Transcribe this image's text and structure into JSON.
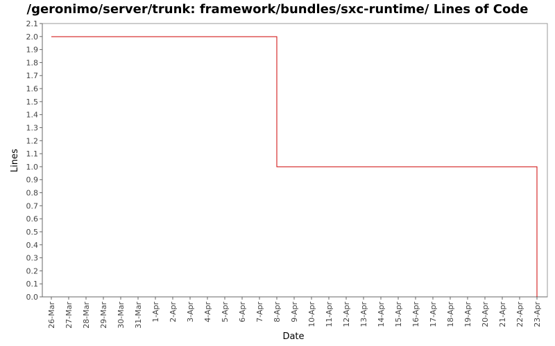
{
  "chart_data": {
    "type": "line",
    "title": "/geronimo/server/trunk: framework/bundles/sxc-runtime/ Lines of Code",
    "xlabel": "Date",
    "ylabel": "Lines",
    "ylim": [
      0.0,
      2.1
    ],
    "yticks": [
      "0.0",
      "0.1",
      "0.2",
      "0.3",
      "0.4",
      "0.5",
      "0.6",
      "0.7",
      "0.8",
      "0.9",
      "1.0",
      "1.1",
      "1.2",
      "1.3",
      "1.4",
      "1.5",
      "1.6",
      "1.7",
      "1.8",
      "1.9",
      "2.0",
      "2.1"
    ],
    "xticks": [
      "26-Mar",
      "27-Mar",
      "28-Mar",
      "29-Mar",
      "30-Mar",
      "31-Mar",
      "1-Apr",
      "2-Apr",
      "3-Apr",
      "4-Apr",
      "5-Apr",
      "6-Apr",
      "7-Apr",
      "8-Apr",
      "9-Apr",
      "10-Apr",
      "11-Apr",
      "12-Apr",
      "13-Apr",
      "14-Apr",
      "15-Apr",
      "16-Apr",
      "17-Apr",
      "18-Apr",
      "19-Apr",
      "20-Apr",
      "21-Apr",
      "22-Apr",
      "23-Apr"
    ],
    "step": true,
    "grid": false,
    "series": [
      {
        "color": "#cc0000",
        "points": [
          {
            "date": "26-Mar",
            "value": 2.0
          },
          {
            "date": "8-Apr",
            "value": 2.0
          },
          {
            "date": "8-Apr",
            "value": 1.0
          },
          {
            "date": "23-Apr",
            "value": 1.0
          },
          {
            "date": "23-Apr",
            "value": 0.0
          }
        ]
      }
    ]
  }
}
